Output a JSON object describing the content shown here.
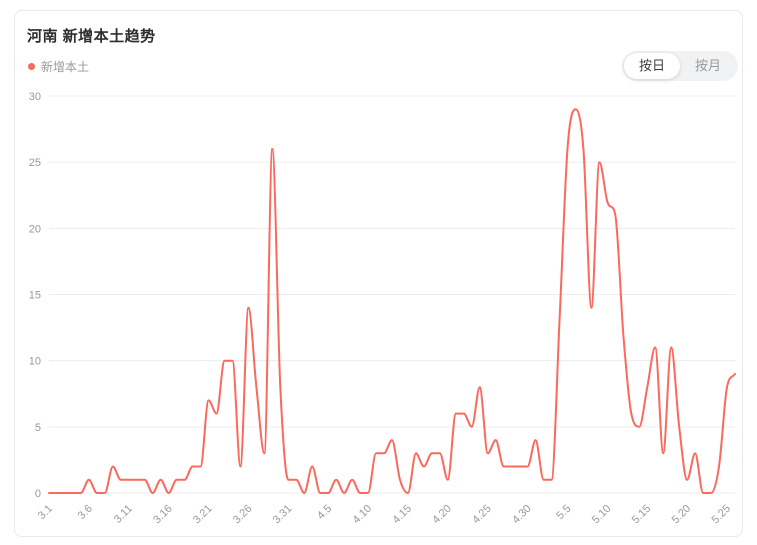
{
  "card": {
    "title": "河南 新增本土趋势",
    "legend": {
      "label": "新增本土",
      "color": "#f9695c"
    },
    "toggle": {
      "options": [
        {
          "label": "按日",
          "active": true
        },
        {
          "label": "按月",
          "active": false
        }
      ]
    }
  },
  "chart_data": {
    "type": "line",
    "title": "河南 新增本土趋势",
    "smooth": true,
    "grid": true,
    "legend_position": "top-left",
    "line_color": "#f9695c",
    "grid_color": "#ececec",
    "axis_text_color": "#999999",
    "xlabel": "",
    "ylabel": "",
    "ylim": [
      0,
      30
    ],
    "y_ticks": [
      0,
      5,
      10,
      15,
      20,
      25,
      30
    ],
    "x_tick_labels": [
      "3.1",
      "3.6",
      "3.11",
      "3.16",
      "3.21",
      "3.26",
      "3.31",
      "4.5",
      "4.10",
      "4.15",
      "4.20",
      "4.25",
      "4.30",
      "5.5",
      "5.10",
      "5.15",
      "5.20",
      "5.25"
    ],
    "x": [
      "3.1",
      "3.2",
      "3.3",
      "3.4",
      "3.5",
      "3.6",
      "3.7",
      "3.8",
      "3.9",
      "3.10",
      "3.11",
      "3.12",
      "3.13",
      "3.14",
      "3.15",
      "3.16",
      "3.17",
      "3.18",
      "3.19",
      "3.20",
      "3.21",
      "3.22",
      "3.23",
      "3.24",
      "3.25",
      "3.26",
      "3.27",
      "3.28",
      "3.29",
      "3.30",
      "3.31",
      "4.1",
      "4.2",
      "4.3",
      "4.4",
      "4.5",
      "4.6",
      "4.7",
      "4.8",
      "4.9",
      "4.10",
      "4.11",
      "4.12",
      "4.13",
      "4.14",
      "4.15",
      "4.16",
      "4.17",
      "4.18",
      "4.19",
      "4.20",
      "4.21",
      "4.22",
      "4.23",
      "4.24",
      "4.25",
      "4.26",
      "4.27",
      "4.28",
      "4.29",
      "4.30",
      "5.1",
      "5.2",
      "5.3",
      "5.4",
      "5.5",
      "5.6",
      "5.7",
      "5.8",
      "5.9",
      "5.10",
      "5.11",
      "5.12",
      "5.13",
      "5.14",
      "5.15",
      "5.16",
      "5.17",
      "5.18",
      "5.19",
      "5.20",
      "5.21",
      "5.22",
      "5.23",
      "5.24",
      "5.25",
      "5.26"
    ],
    "series": [
      {
        "name": "新增本土",
        "values": [
          0,
          0,
          0,
          0,
          0,
          1,
          0,
          0,
          2,
          1,
          1,
          1,
          1,
          0,
          1,
          0,
          1,
          1,
          2,
          2,
          7,
          6,
          10,
          10,
          2,
          14,
          8,
          3,
          26,
          8,
          1,
          1,
          0,
          2,
          0,
          0,
          1,
          0,
          1,
          0,
          0,
          3,
          3,
          4,
          1,
          0,
          3,
          2,
          3,
          3,
          1,
          6,
          6,
          5,
          8,
          3,
          4,
          2,
          2,
          2,
          2,
          4,
          1,
          1,
          13,
          26,
          29,
          26,
          14,
          25,
          22,
          21,
          12,
          6,
          5,
          8,
          11,
          3,
          11,
          5,
          1,
          3,
          0,
          0,
          2,
          8,
          9
        ]
      }
    ]
  }
}
